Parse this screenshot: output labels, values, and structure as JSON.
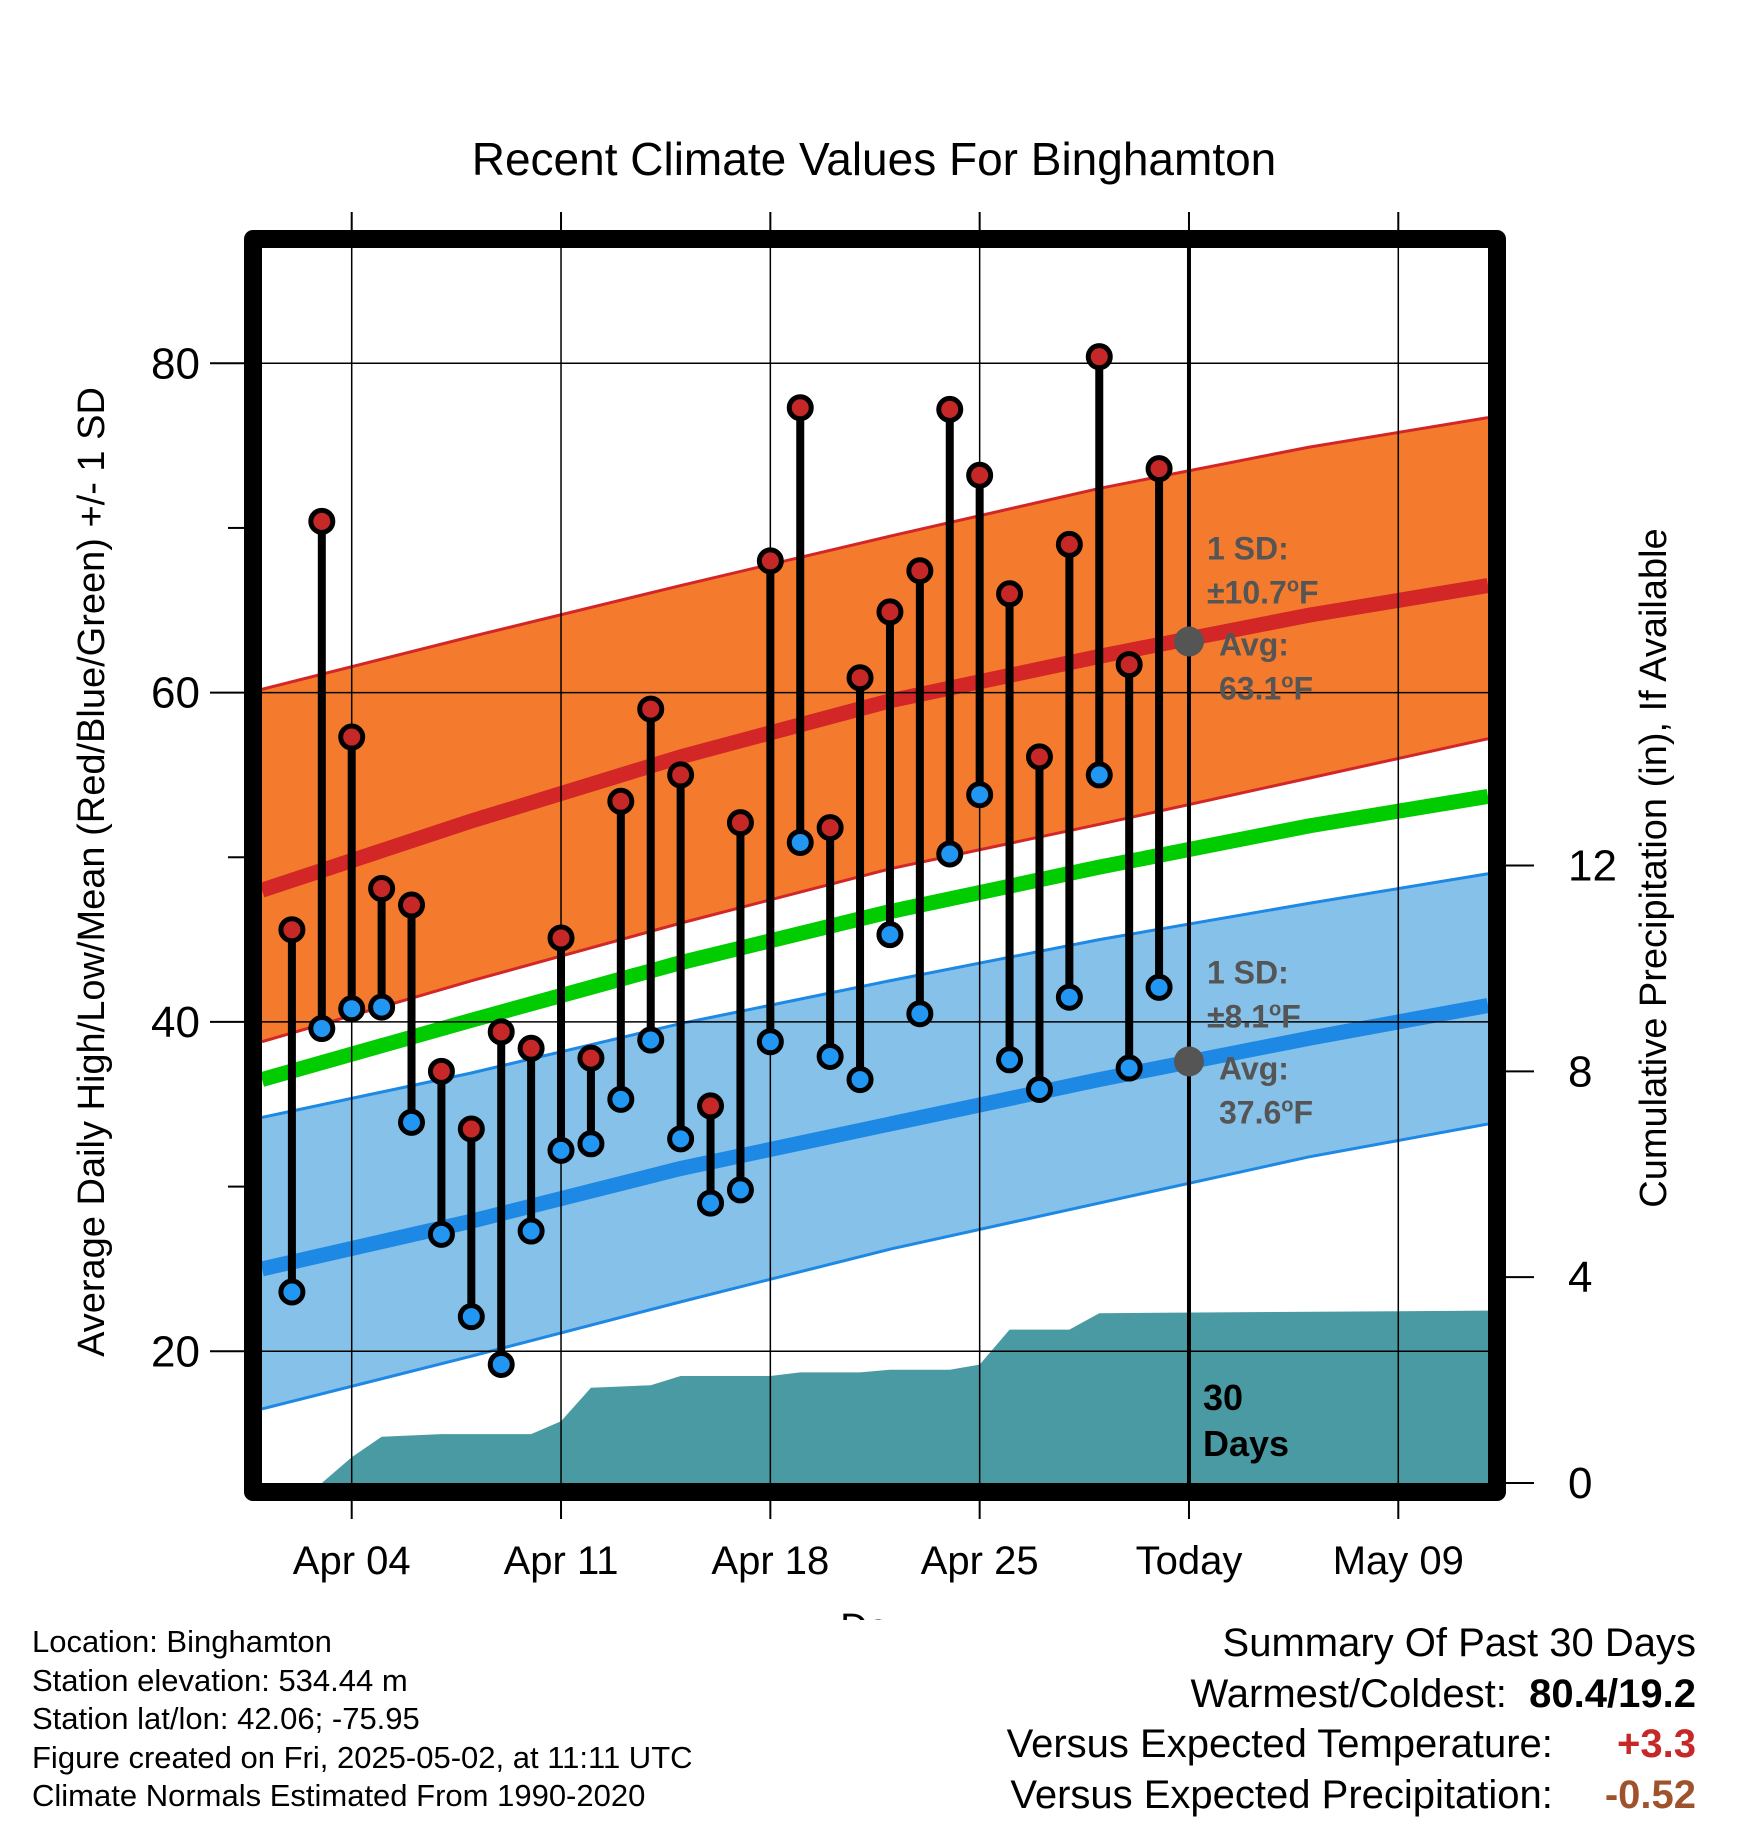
{
  "chart_data": {
    "type": "line",
    "title": "Recent Climate Values For Binghamton",
    "xlabel": "Day",
    "ylabel": "Average Daily High/Low/Mean (Red/Blue/Green) +/- 1 SD",
    "y2label": "Cumulative Precipitation (in), If Available",
    "xlim": [
      "2025-04-01",
      "2025-05-12"
    ],
    "ylim": [
      12,
      87
    ],
    "y2lim": [
      0,
      24
    ],
    "x_ticks": [
      {
        "date": "2025-04-04",
        "label": "Apr 04"
      },
      {
        "date": "2025-04-11",
        "label": "Apr 11"
      },
      {
        "date": "2025-04-18",
        "label": "Apr 18"
      },
      {
        "date": "2025-04-25",
        "label": "Apr 25"
      },
      {
        "date": "2025-05-02",
        "label": "Today"
      },
      {
        "date": "2025-05-09",
        "label": "May 09"
      }
    ],
    "y_ticks": [
      20,
      40,
      60,
      80
    ],
    "y2_ticks": [
      0,
      4,
      8,
      12
    ],
    "grid": true,
    "today": "2025-05-02",
    "dates": [
      "2025-04-02",
      "2025-04-03",
      "2025-04-04",
      "2025-04-05",
      "2025-04-06",
      "2025-04-07",
      "2025-04-08",
      "2025-04-09",
      "2025-04-10",
      "2025-04-11",
      "2025-04-12",
      "2025-04-13",
      "2025-04-14",
      "2025-04-15",
      "2025-04-16",
      "2025-04-17",
      "2025-04-18",
      "2025-04-19",
      "2025-04-20",
      "2025-04-21",
      "2025-04-22",
      "2025-04-23",
      "2025-04-24",
      "2025-04-25",
      "2025-04-26",
      "2025-04-27",
      "2025-04-28",
      "2025-04-29",
      "2025-04-30",
      "2025-05-01"
    ],
    "daily_high": [
      45.6,
      70.4,
      57.3,
      48.1,
      47.1,
      37.0,
      33.5,
      39.4,
      38.4,
      45.1,
      37.8,
      53.4,
      59.0,
      55.0,
      34.9,
      52.1,
      68.0,
      77.3,
      51.8,
      60.9,
      64.9,
      67.4,
      77.2,
      73.2,
      66.0,
      56.1,
      69.0,
      80.4,
      61.7,
      73.6
    ],
    "daily_low": [
      23.6,
      39.6,
      40.8,
      40.9,
      33.9,
      27.1,
      22.1,
      19.2,
      27.3,
      32.2,
      32.6,
      35.3,
      38.9,
      32.9,
      29.0,
      29.8,
      38.8,
      50.9,
      37.9,
      36.5,
      45.3,
      40.5,
      50.2,
      53.8,
      37.7,
      35.9,
      41.5,
      55.0,
      37.2,
      42.1
    ],
    "normals": {
      "dates": [
        "2025-04-01",
        "2025-04-08",
        "2025-04-15",
        "2025-04-22",
        "2025-04-29",
        "2025-05-06",
        "2025-05-12"
      ],
      "high_avg": [
        48.0,
        52.2,
        56.1,
        59.5,
        62.2,
        64.7,
        66.5
      ],
      "high_upper": [
        60.2,
        63.4,
        66.5,
        69.5,
        72.4,
        74.9,
        76.7
      ],
      "high_lower": [
        38.8,
        42.5,
        46.0,
        49.3,
        52.0,
        54.8,
        57.2
      ],
      "low_avg": [
        25.0,
        27.9,
        31.1,
        33.8,
        36.5,
        39.0,
        41.0
      ],
      "low_upper": [
        34.2,
        36.9,
        39.9,
        42.5,
        45.0,
        47.2,
        49.0
      ],
      "low_lower": [
        16.5,
        19.7,
        23.0,
        26.2,
        29.0,
        31.8,
        33.8
      ],
      "mean_avg": [
        36.5,
        40.1,
        43.6,
        46.7,
        49.4,
        51.9,
        53.7
      ]
    },
    "precipitation": {
      "dates": [
        "2025-04-01",
        "2025-04-03",
        "2025-04-04",
        "2025-04-05",
        "2025-04-07",
        "2025-04-10",
        "2025-04-11",
        "2025-04-12",
        "2025-04-14",
        "2025-04-15",
        "2025-04-18",
        "2025-04-19",
        "2025-04-21",
        "2025-04-22",
        "2025-04-24",
        "2025-04-25",
        "2025-04-26",
        "2025-04-28",
        "2025-04-29",
        "2025-05-12"
      ],
      "cumulative_in": [
        0,
        0,
        0.5,
        0.9,
        0.95,
        0.95,
        1.2,
        1.85,
        1.9,
        2.08,
        2.08,
        2.15,
        2.15,
        2.2,
        2.2,
        2.3,
        2.98,
        2.98,
        3.3,
        3.35
      ]
    },
    "annotations": [
      {
        "date": "2025-05-02",
        "value": 63.1,
        "label": "1 SD:",
        "label2": "±10.7",
        "label2_sup": "o",
        "label2_unit": "F",
        "avg_label": "Avg:",
        "avg_value": "63.1",
        "avg_sup": "o",
        "avg_unit": "F"
      },
      {
        "date": "2025-05-02",
        "value": 37.6,
        "label": "1 SD:",
        "label2": "±8.1",
        "label2_sup": "o",
        "label2_unit": "F",
        "avg_label": "Avg:",
        "avg_value": "37.6",
        "avg_sup": "o",
        "avg_unit": "F"
      }
    ],
    "days_label_1": "30",
    "days_label_2": "Days",
    "colors": {
      "high_band": "#f47b2e",
      "high_line": "#d32626",
      "high_edge": "#d32626",
      "low_band": "#85c1e9",
      "low_line": "#1e88e5",
      "low_edge": "#1e88e5",
      "mean_line": "#00cc00",
      "precip": "#4a9aa3",
      "high_dot": "#c62828",
      "low_dot": "#2196f3",
      "avg_dot": "#555555",
      "annot_text": "#555555"
    }
  },
  "info": {
    "location": "Location: Binghamton",
    "elevation": "Station elevation: 534.44 m",
    "latlon": "Station lat/lon: 42.06; -75.95",
    "created": "Figure created on Fri, 2025-05-02, at 11:11 UTC",
    "normals": "Climate Normals Estimated From 1990-2020"
  },
  "summary": {
    "title": "Summary Of Past 30 Days",
    "warm_label": "Warmest/Coldest:",
    "warm_value": "80.4/19.2",
    "temp_label": "Versus Expected Temperature:",
    "temp_value": "+3.3",
    "precip_label": "Versus Expected Precipitation:",
    "precip_value": "-0.52",
    "temp_color": "#c62828",
    "precip_color": "#a0522d"
  }
}
